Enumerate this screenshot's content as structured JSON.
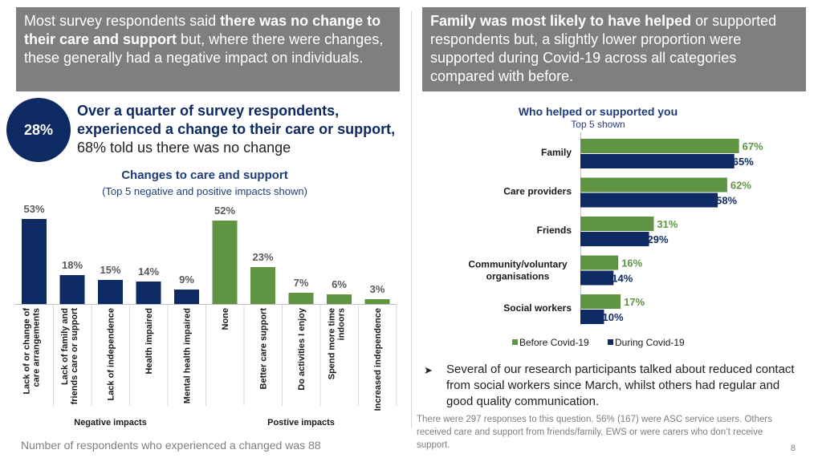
{
  "header_left": {
    "t1": "Most survey respondents said ",
    "b1": "there was no change to their care and support",
    "t2": " but, where there were changes, these generally had a negative impact on individuals."
  },
  "header_right": {
    "b1": "Family was most likely to have helped",
    "t1": " or supported respondents but, a slightly lower proportion were supported during Covid-19 across all categories compared with before."
  },
  "stat_circle": "28%",
  "headline": {
    "b1": "Over a quarter of survey respondents, experienced a change to their care or support,",
    "t1": " 68% told us there was no change"
  },
  "footer_note": "Number of respondents who experienced a changed was 88",
  "page_number": "8",
  "bullet_text": "Several of our research participants talked about reduced contact from social workers since March, whilst others had regular and good quality communication.",
  "response_note": "There were 297 responses to this question.  56% (167) were ASC service users. Others received care and support from friends/family, EWS or were carers who don’t receive support.",
  "colors": {
    "navy": "#0e2a63",
    "green": "#5e9442",
    "header_bg": "#7f7f7f"
  },
  "chart_data": [
    {
      "type": "bar",
      "title": "Changes to care and support",
      "subtitle": "(Top 5 negative and positive impacts shown)",
      "ylim": [
        0,
        53
      ],
      "groups": [
        {
          "name": "Negative impacts",
          "color": "#0e2a63",
          "categories": [
            "Lack of or change of care arrangements",
            "Lack of family and friends care or support",
            "Lack of independence",
            "Health impaired",
            "Mental health impaired"
          ],
          "values": [
            53,
            18,
            15,
            14,
            9
          ]
        },
        {
          "name": "Postive impacts",
          "color": "#5e9442",
          "categories": [
            "None",
            "Better care support",
            "Do activities I enjoy",
            "Spend more time indoors",
            "Increased independence"
          ],
          "values": [
            52,
            23,
            7,
            6,
            3
          ]
        }
      ]
    },
    {
      "type": "bar",
      "orientation": "horizontal",
      "title": "Who helped or supported you",
      "subtitle": "Top 5 shown",
      "categories": [
        "Family",
        "Care providers",
        "Friends",
        "Community/voluntary organisations",
        "Social workers"
      ],
      "series": [
        {
          "name": "Before Covid-19",
          "color": "#5e9442",
          "values": [
            67,
            62,
            31,
            16,
            17
          ]
        },
        {
          "name": "During Covid-19",
          "color": "#0e2a63",
          "values": [
            65,
            58,
            29,
            14,
            10
          ]
        }
      ],
      "legend": "bottom"
    }
  ]
}
